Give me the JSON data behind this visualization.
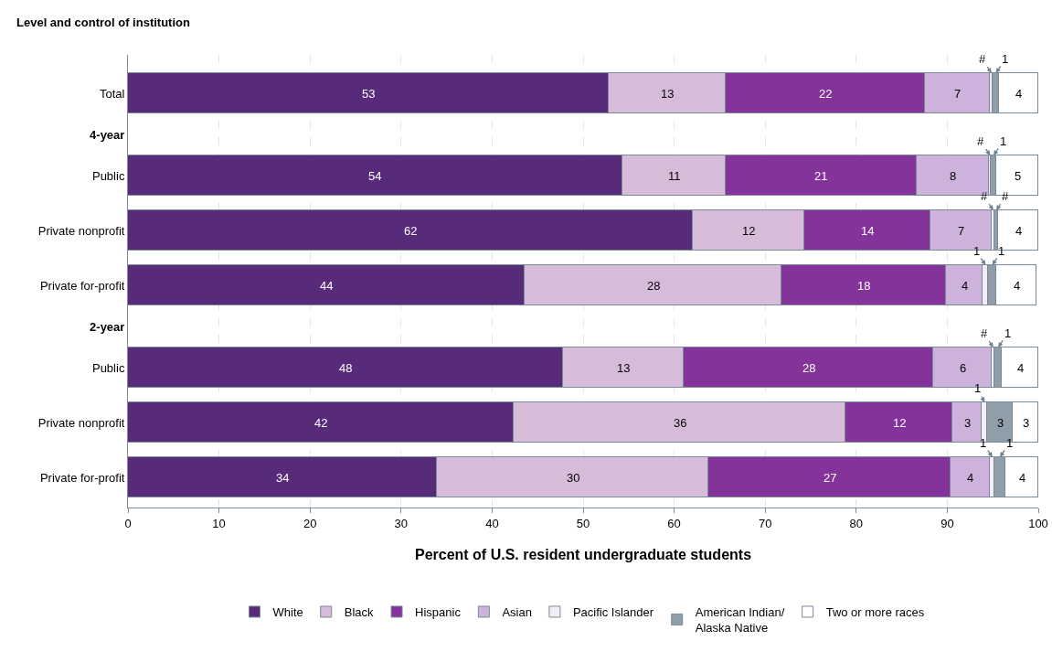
{
  "chart_data": {
    "type": "bar",
    "orientation": "horizontal",
    "stacked": true,
    "ylabel": "Level and control of institution",
    "xlabel": "Percent of U.S. resident undergraduate students",
    "categories": [
      "Total",
      "4-year",
      "Public",
      "Private nonprofit",
      "Private for-profit",
      "2-year",
      "Public",
      "Private nonprofit",
      "Private for-profit"
    ],
    "series": [
      {
        "name": "White",
        "color": "#582a7a",
        "values": [
          52.8,
          null,
          54.3,
          62.0,
          43.6,
          null,
          47.8,
          42.4,
          33.9
        ],
        "value_labels": [
          "53",
          null,
          "54",
          "62",
          "44",
          null,
          "48",
          "42",
          "34"
        ]
      },
      {
        "name": "Black",
        "color": "#d7bcd9",
        "values": [
          12.9,
          null,
          11.4,
          12.3,
          28.2,
          null,
          13.2,
          36.4,
          29.9
        ],
        "value_labels": [
          "13",
          null,
          "11",
          "12",
          "28",
          null,
          "13",
          "36",
          "30"
        ]
      },
      {
        "name": "Hispanic",
        "color": "#833399",
        "values": [
          21.8,
          null,
          20.9,
          13.9,
          18.1,
          null,
          27.5,
          11.8,
          26.6
        ],
        "value_labels": [
          "22",
          null,
          "21",
          "14",
          "18",
          null,
          "28",
          "12",
          "27"
        ]
      },
      {
        "name": "Asian",
        "color": "#cdb3dc",
        "values": [
          7.2,
          null,
          8.0,
          6.7,
          4.0,
          null,
          6.4,
          3.2,
          4.3
        ],
        "value_labels": [
          "7",
          null,
          "8",
          "7",
          "4",
          null,
          "6",
          "3",
          "4"
        ]
      },
      {
        "name": "Pacific Islander",
        "color": "#f2edf5",
        "values": [
          0.3,
          null,
          0.2,
          0.3,
          0.6,
          null,
          0.3,
          0.6,
          0.5
        ],
        "value_labels": [
          "#",
          null,
          "#",
          "#",
          "1",
          null,
          "#",
          "1",
          "1"
        ]
      },
      {
        "name": "American Indian/\nAlaska Native",
        "color": "#8f9ea8",
        "values": [
          0.7,
          null,
          0.6,
          0.4,
          0.9,
          null,
          0.8,
          2.8,
          1.2
        ],
        "value_labels": [
          "1",
          null,
          "1",
          "#",
          "1",
          null,
          "1",
          "3",
          "1"
        ]
      },
      {
        "name": "Two or more races",
        "color": "#ffffff",
        "values": [
          4.3,
          null,
          4.6,
          4.4,
          4.4,
          null,
          4.0,
          2.8,
          3.6
        ],
        "value_labels": [
          "4",
          null,
          "5",
          "4",
          "4",
          null,
          "4",
          "3",
          "4"
        ]
      }
    ],
    "xlim": [
      0,
      100
    ],
    "xticks": [
      0,
      10,
      20,
      30,
      40,
      50,
      60,
      70,
      80,
      90,
      100
    ],
    "grid": "x",
    "legend": "bottom"
  }
}
